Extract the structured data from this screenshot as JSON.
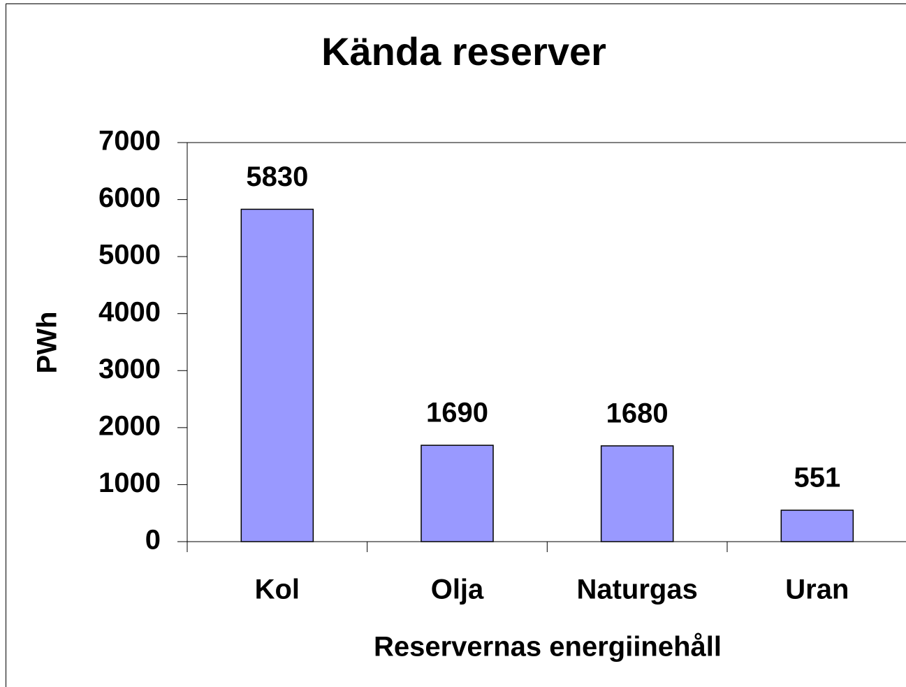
{
  "chart_data": {
    "type": "bar",
    "title": "Kända reserver",
    "x_label": "Reservernas energiinehåll",
    "y_label": "PWh",
    "categories": [
      "Kol",
      "Olja",
      "Naturgas",
      "Uran"
    ],
    "values": [
      5830,
      1690,
      1680,
      551
    ],
    "color": "#9999ff",
    "ylim": [
      0,
      7000
    ],
    "yticks": [
      0,
      1000,
      2000,
      3000,
      4000,
      5000,
      6000,
      7000
    ],
    "grid": false,
    "data_labels": true
  }
}
